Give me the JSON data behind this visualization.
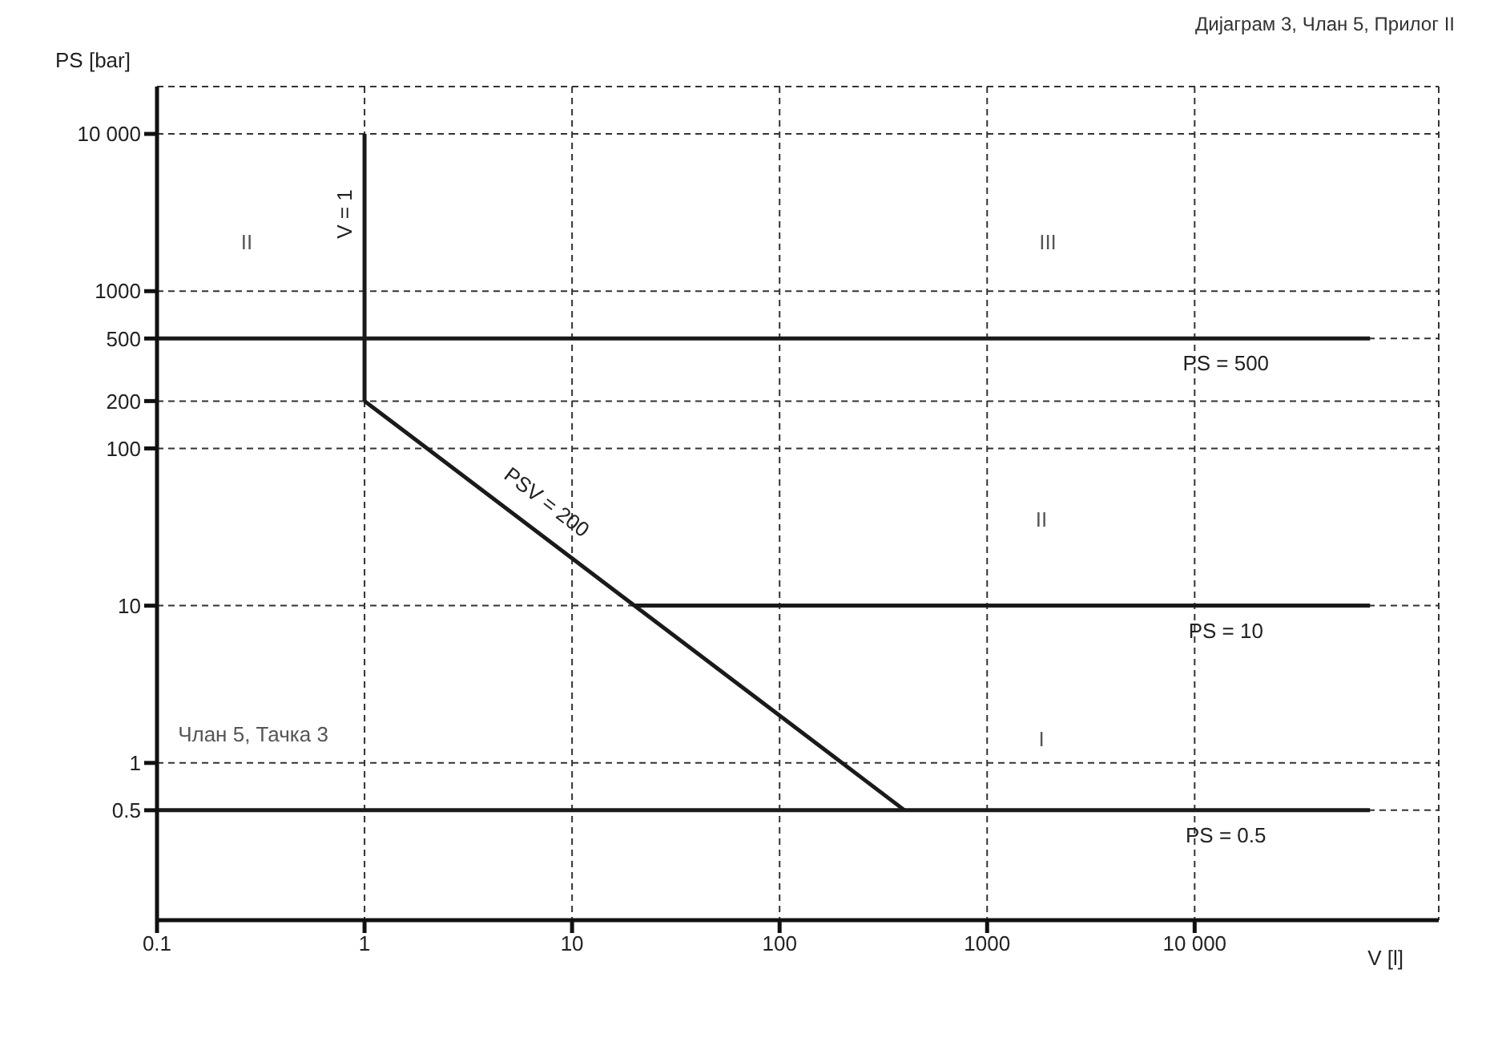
{
  "chart_data": {
    "type": "line",
    "title": "Дијаграм 3, Члан 5, Прилог II",
    "xlabel": "V [l]",
    "ylabel": "PS [bar]",
    "log": "xy",
    "grid": true,
    "marker": "none",
    "line_style": "solid",
    "xlim": [
      0.1,
      150000
    ],
    "xticks": [
      0.1,
      1,
      10,
      100,
      1000,
      {
        "value": 10000,
        "label": "10 000"
      }
    ],
    "ylim": [
      0.1,
      20000
    ],
    "yticks": [
      0.5,
      1,
      10,
      100,
      200,
      500,
      1000,
      {
        "value": 10000,
        "label": "10 000"
      }
    ],
    "series": [
      {
        "name": "V = 1",
        "color": "#1a1a1a",
        "x": [
          1,
          1
        ],
        "values": [
          200,
          10000
        ]
      },
      {
        "name": "PSV = 200",
        "color": "#1a1a1a",
        "x": [
          1,
          400
        ],
        "values": [
          200,
          0.5
        ]
      },
      {
        "name": "PS = 500",
        "color": "#1a1a1a",
        "x": [
          0.1,
          70000
        ],
        "values": [
          500,
          500
        ]
      },
      {
        "name": "PS = 10",
        "color": "#1a1a1a",
        "x": [
          20,
          70000
        ],
        "values": [
          10,
          10
        ]
      },
      {
        "name": "PS = 0.5",
        "color": "#1a1a1a",
        "x": [
          0.1,
          70000
        ],
        "values": [
          0.5,
          0.5
        ]
      }
    ],
    "annotations": [
      "II",
      "III",
      "II",
      "I",
      "Члан 5, Тачка 3"
    ]
  }
}
